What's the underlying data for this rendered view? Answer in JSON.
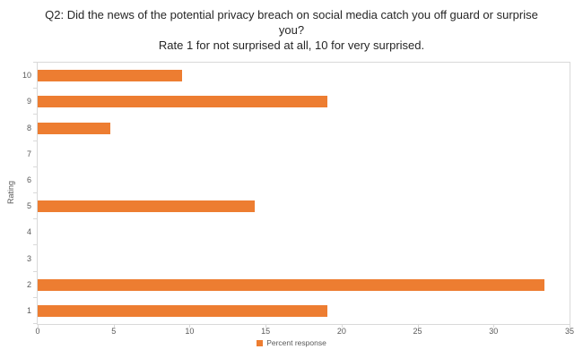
{
  "chart_data": {
    "type": "bar",
    "orientation": "horizontal",
    "title": "Q2: Did the news of the potential privacy breach on social media catch you off guard or surprise you?",
    "subtitle": "Rate 1 for not surprised at all, 10 for very surprised.",
    "categories": [
      "10",
      "9",
      "8",
      "7",
      "6",
      "5",
      "4",
      "3",
      "2",
      "1"
    ],
    "series": [
      {
        "name": "Percent response",
        "values": [
          9.52,
          19.05,
          4.76,
          0,
          0,
          14.29,
          0,
          0,
          33.33,
          19.05
        ]
      }
    ],
    "xlabel": "",
    "ylabel": "Rating",
    "xlim": [
      0,
      35
    ],
    "x_ticks": [
      0,
      5,
      10,
      15,
      20,
      25,
      30,
      35
    ],
    "grid": false,
    "legend": "Percent response",
    "legend_position": "bottom",
    "colors": {
      "bar": "#ED7D31",
      "axis_line": "#D9D9D9",
      "tick_label": "#595959",
      "title_text": "#262626"
    }
  }
}
